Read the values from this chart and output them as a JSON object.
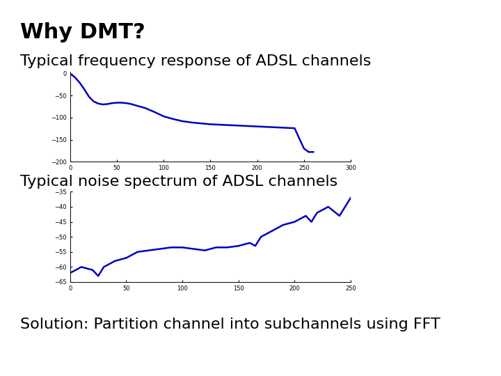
{
  "title": "Why DMT?",
  "title_fontsize": 22,
  "title_fontweight": "bold",
  "subtitle1": "Typical frequency response of ADSL channels",
  "subtitle2": "Typical noise spectrum of ADSL channels",
  "subtitle3": "Solution: Partition channel into subchannels using FFT",
  "subtitle_fontsize": 16,
  "solution_fontsize": 16,
  "line_color": "#0000bb",
  "line_width": 1.8,
  "bg_color": "#ffffff",
  "chart1": {
    "x": [
      0,
      5,
      10,
      15,
      20,
      25,
      30,
      35,
      40,
      45,
      50,
      55,
      60,
      65,
      70,
      80,
      90,
      100,
      110,
      120,
      130,
      140,
      150,
      160,
      170,
      180,
      190,
      200,
      210,
      220,
      230,
      240,
      250,
      255,
      260
    ],
    "y": [
      0,
      -8,
      -20,
      -35,
      -52,
      -63,
      -68,
      -70,
      -69,
      -67,
      -66,
      -66,
      -67,
      -69,
      -72,
      -78,
      -87,
      -97,
      -103,
      -108,
      -111,
      -113,
      -115,
      -116,
      -117,
      -118,
      -119,
      -120,
      -121,
      -122,
      -123,
      -124,
      -170,
      -178,
      -178
    ],
    "xlim": [
      0,
      300
    ],
    "ylim": [
      -200,
      5
    ],
    "xticks": [
      0,
      50,
      100,
      150,
      200,
      250,
      300
    ],
    "yticks": [
      0,
      -50,
      -100,
      -150,
      -200
    ],
    "tick_fontsize": 6
  },
  "chart2": {
    "x": [
      0,
      10,
      20,
      25,
      30,
      40,
      50,
      60,
      70,
      80,
      90,
      100,
      110,
      120,
      130,
      140,
      150,
      160,
      165,
      170,
      180,
      190,
      200,
      210,
      215,
      220,
      230,
      240,
      250
    ],
    "y": [
      -62,
      -60,
      -61,
      -63,
      -60,
      -58,
      -57,
      -55,
      -54.5,
      -54,
      -53.5,
      -53.5,
      -54,
      -54.5,
      -53.5,
      -53.5,
      -53,
      -52,
      -53,
      -50,
      -48,
      -46,
      -45,
      -43,
      -45,
      -42,
      -40,
      -43,
      -37
    ],
    "xlim": [
      0,
      250
    ],
    "ylim": [
      -65,
      -35
    ],
    "xticks": [
      0,
      50,
      100,
      150,
      200,
      250
    ],
    "yticks": [
      -35,
      -40,
      -45,
      -50,
      -55,
      -60,
      -65
    ],
    "tick_fontsize": 6
  }
}
